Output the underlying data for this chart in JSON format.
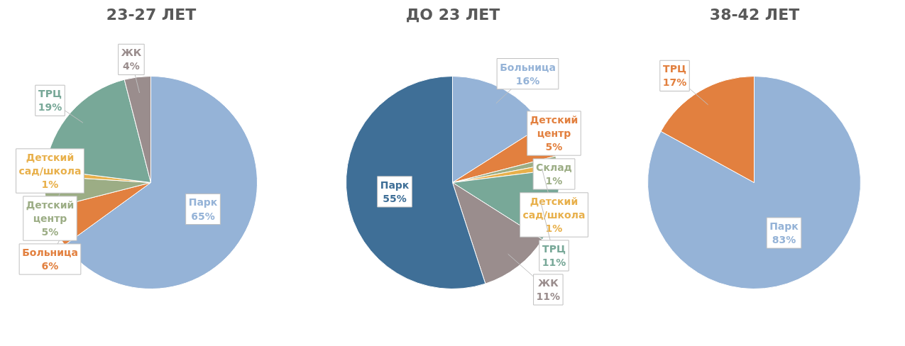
{
  "chart_data": [
    {
      "type": "pie",
      "title": "23-27 ЛЕТ",
      "categories": [
        "Парк",
        "Больница",
        "Детский центр",
        "Детский сад/школа",
        "ТРЦ",
        "ЖК"
      ],
      "values": [
        65,
        6,
        5,
        1,
        19,
        4
      ],
      "colors": [
        "#95b3d7",
        "#e2803f",
        "#9cad85",
        "#e8b04b",
        "#78a898",
        "#9a8d8d"
      ],
      "value_labels": [
        "65%",
        "6%",
        "5%",
        "1%",
        "19%",
        "4%"
      ]
    },
    {
      "type": "pie",
      "title": "ДО 23 ЛЕТ",
      "categories": [
        "Больница",
        "Детский центр",
        "Склад",
        "Детский сад/школа",
        "ТРЦ",
        "ЖК",
        "Парк"
      ],
      "values": [
        16,
        5,
        1,
        1,
        11,
        11,
        55
      ],
      "colors": [
        "#95b3d7",
        "#e2803f",
        "#9cad85",
        "#e8b04b",
        "#78a898",
        "#9a8d8d",
        "#3f6f97"
      ],
      "value_labels": [
        "16%",
        "5%",
        "1%",
        "1%",
        "11%",
        "11%",
        "55%"
      ]
    },
    {
      "type": "pie",
      "title": "38-42 ЛЕТ",
      "categories": [
        "Парк",
        "ТРЦ"
      ],
      "values": [
        83,
        17
      ],
      "colors": [
        "#95b3d7",
        "#e2803f"
      ],
      "value_labels": [
        "83%",
        "17%"
      ]
    }
  ]
}
